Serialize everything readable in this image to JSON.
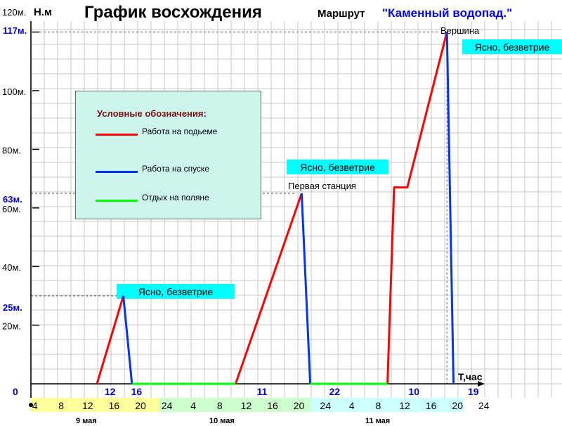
{
  "header": {
    "title": "График восхождения",
    "route_label": "Маршрут",
    "route_name": "\"Каменный водопад.\""
  },
  "chart_data": {
    "type": "line",
    "xlabel": "T,час",
    "ylabel": "Н.м",
    "ylim": [
      0,
      120
    ],
    "y_ticks": [
      "120м.",
      "100м.",
      "80м.",
      "60м.",
      "40м.",
      "20м."
    ],
    "key_heights": [
      "117м.",
      "63м.",
      "25м."
    ],
    "origin_label": "0",
    "time_markers": [
      {
        "label": "12",
        "t": 12
      },
      {
        "label": "16",
        "t": 16
      },
      {
        "label": "11",
        "t": 35
      },
      {
        "label": "22",
        "t": 46
      },
      {
        "label": "10",
        "t": 58
      },
      {
        "label": "19",
        "t": 67
      }
    ],
    "hour_ticks": [
      "4",
      "8",
      "12",
      "16",
      "20",
      "24",
      "4",
      "8",
      "12",
      "16",
      "20",
      "24",
      "4",
      "8",
      "12",
      "16",
      "20",
      "24"
    ],
    "days": [
      {
        "label": "9 мая",
        "color": "#ffff99"
      },
      {
        "label": "10 мая",
        "color": "#ccffcc"
      },
      {
        "label": "11 мая",
        "color": "#ccffff"
      }
    ],
    "series": [
      {
        "name": "Работа на подьеме",
        "color": "#ff0000",
        "segments": [
          [
            [
              10,
              0
            ],
            [
              14,
              30
            ]
          ],
          [
            [
              31,
              0
            ],
            [
              41,
              65
            ]
          ],
          [
            [
              54,
              0
            ],
            [
              55,
              67
            ],
            [
              57,
              67
            ],
            [
              63,
              120
            ]
          ]
        ]
      },
      {
        "name": "Работа на спуске",
        "color": "#0033ff",
        "segments": [
          [
            [
              14,
              30
            ],
            [
              15.3,
              0
            ]
          ],
          [
            [
              41,
              65
            ],
            [
              42.3,
              0
            ]
          ],
          [
            [
              63,
              120
            ],
            [
              64,
              0
            ]
          ]
        ]
      },
      {
        "name": "Отдых на поляне",
        "color": "#00ff00",
        "segments": [
          [
            [
              15.3,
              0
            ],
            [
              31,
              0
            ]
          ],
          [
            [
              42.3,
              0
            ],
            [
              54,
              0
            ]
          ]
        ]
      }
    ],
    "annotations": [
      {
        "text": "Вершина"
      },
      {
        "text": "Первая станция"
      }
    ],
    "weather_labels": [
      "Ясно, безветрие",
      "Ясно, безветрие",
      "Ясно, безветрие"
    ],
    "legend": {
      "title": "Условные обозначения:",
      "placement": "upper-left"
    },
    "grid": true
  }
}
